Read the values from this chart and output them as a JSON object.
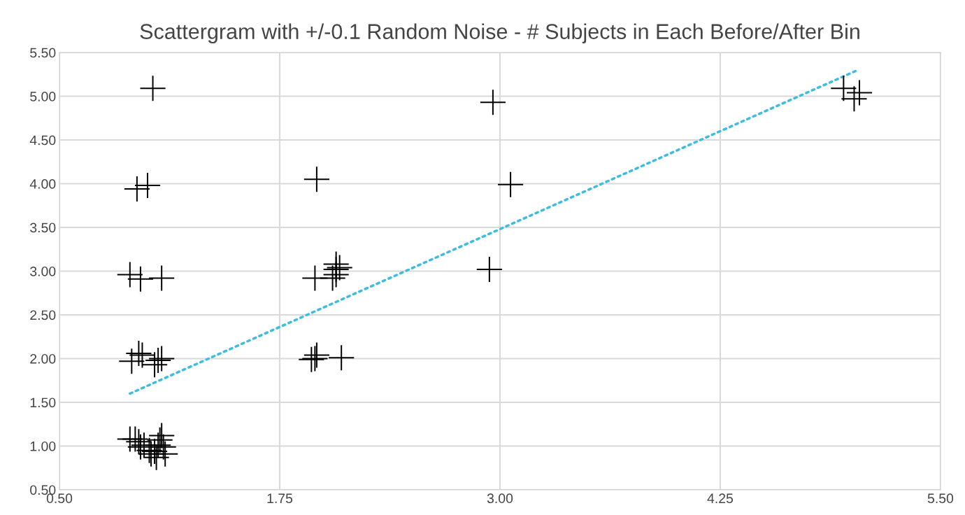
{
  "chart_data": {
    "type": "scatter",
    "title": "Scattergram with +/-0.1 Random Noise - # Subjects in Each Before/After Bin",
    "xlim": [
      0.5,
      5.5
    ],
    "ylim": [
      0.5,
      5.5
    ],
    "xticks": [
      {
        "value": 0.5,
        "label": "0.50"
      },
      {
        "value": 1.75,
        "label": "1.75"
      },
      {
        "value": 3.0,
        "label": "3.00"
      },
      {
        "value": 4.25,
        "label": "4.25"
      },
      {
        "value": 5.5,
        "label": "5.50"
      }
    ],
    "yticks": [
      {
        "value": 0.5,
        "label": "0.50"
      },
      {
        "value": 1.0,
        "label": "1.00"
      },
      {
        "value": 1.5,
        "label": "1.50"
      },
      {
        "value": 2.0,
        "label": "2.00"
      },
      {
        "value": 2.5,
        "label": "2.50"
      },
      {
        "value": 3.0,
        "label": "3.00"
      },
      {
        "value": 3.5,
        "label": "3.50"
      },
      {
        "value": 4.0,
        "label": "4.00"
      },
      {
        "value": 4.5,
        "label": "4.50"
      },
      {
        "value": 5.0,
        "label": "5.00"
      },
      {
        "value": 5.5,
        "label": "5.50"
      }
    ],
    "grid": true,
    "legend": false,
    "series": [
      {
        "type": "scatter",
        "color": "#000000",
        "marker": "cross",
        "x": [
          1.03,
          0.94,
          1.0,
          0.9,
          0.96,
          1.08,
          0.91,
          0.95,
          0.97,
          1.04,
          1.06,
          1.08,
          0.9,
          0.93,
          0.95,
          0.96,
          0.98,
          1.01,
          1.02,
          1.04,
          1.06,
          1.07,
          1.09,
          1.1,
          1.08,
          1.05,
          1.96,
          1.95,
          2.07,
          2.07,
          2.07,
          2.09,
          2.05,
          1.93,
          1.95,
          1.96,
          2.1,
          2.96,
          3.06,
          2.94,
          4.95,
          5.01,
          5.04
        ],
        "values": [
          5.09,
          3.94,
          3.98,
          2.96,
          2.91,
          2.92,
          1.97,
          2.06,
          2.04,
          1.93,
          1.98,
          2.0,
          1.08,
          1.08,
          1.05,
          0.99,
          1.01,
          0.95,
          0.91,
          0.94,
          1.01,
          1.07,
          0.99,
          0.91,
          1.12,
          0.87,
          4.05,
          2.92,
          3.08,
          2.96,
          3.02,
          3.04,
          2.92,
          1.99,
          2.0,
          2.04,
          2.01,
          4.93,
          3.99,
          3.02,
          5.09,
          4.97,
          5.04
        ]
      },
      {
        "type": "line",
        "color": "#3bbde0",
        "line_style": "dotted",
        "x": [
          0.9,
          5.02
        ],
        "values": [
          1.6,
          5.29
        ]
      }
    ]
  }
}
